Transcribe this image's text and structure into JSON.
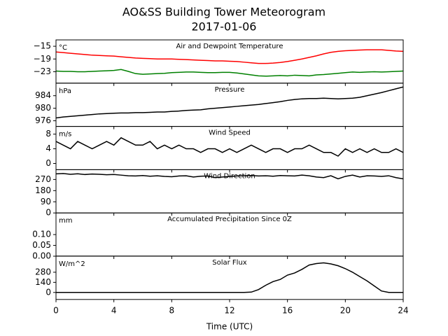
{
  "title": "AO&SS Building Tower Meteorogram",
  "subtitle": "2017-01-06",
  "chart_data": [
    {
      "type": "line",
      "title": "Air and Dewpoint Temperature",
      "unit": "°C",
      "x": [
        0,
        0.5,
        1,
        1.5,
        2,
        2.5,
        3,
        3.5,
        4,
        4.5,
        5,
        5.5,
        6,
        6.5,
        7,
        7.5,
        8,
        8.5,
        9,
        9.5,
        10,
        10.5,
        11,
        11.5,
        12,
        12.5,
        13,
        13.5,
        14,
        14.5,
        15,
        15.5,
        16,
        16.5,
        17,
        17.5,
        18,
        18.5,
        19,
        19.5,
        20,
        20.5,
        21,
        21.5,
        22,
        22.5,
        23,
        23.5,
        24
      ],
      "xlim": [
        0,
        24
      ],
      "xticks": [
        0,
        4,
        8,
        12,
        16,
        20,
        24
      ],
      "ylim": [
        -26.6,
        -13
      ],
      "yticks": [
        {
          "value": -15,
          "label": "−15"
        },
        {
          "value": -19,
          "label": "−19"
        },
        {
          "value": -23,
          "label": "−23"
        }
      ],
      "series": [
        {
          "color": "#ff0000",
          "values": [
            -16.8,
            -17,
            -17.2,
            -17.4,
            -17.6,
            -17.8,
            -17.9,
            -18,
            -18.1,
            -18.3,
            -18.5,
            -18.7,
            -18.8,
            -18.9,
            -19,
            -19,
            -19,
            -19.1,
            -19.2,
            -19.3,
            -19.4,
            -19.5,
            -19.6,
            -19.6,
            -19.7,
            -19.8,
            -20,
            -20.2,
            -20.4,
            -20.4,
            -20.3,
            -20.1,
            -19.8,
            -19.4,
            -19,
            -18.5,
            -18,
            -17.4,
            -16.9,
            -16.6,
            -16.4,
            -16.3,
            -16.2,
            -16.1,
            -16.1,
            -16.1,
            -16.3,
            -16.5,
            -16.6
          ]
        },
        {
          "color": "#008000",
          "values": [
            -22.8,
            -22.9,
            -22.9,
            -23,
            -23,
            -22.9,
            -22.8,
            -22.7,
            -22.6,
            -22.3,
            -22.9,
            -23.6,
            -23.8,
            -23.7,
            -23.6,
            -23.5,
            -23.3,
            -23.2,
            -23.1,
            -23.1,
            -23.2,
            -23.3,
            -23.3,
            -23.2,
            -23.2,
            -23.4,
            -23.7,
            -24,
            -24.3,
            -24.4,
            -24.3,
            -24.2,
            -24.3,
            -24.1,
            -24.2,
            -24.3,
            -24,
            -23.9,
            -23.7,
            -23.5,
            -23.3,
            -23.1,
            -23.2,
            -23.1,
            -23,
            -23.1,
            -23,
            -22.9,
            -22.8
          ]
        }
      ]
    },
    {
      "type": "line",
      "title": "Pressure",
      "unit": "hPa",
      "x": [
        0,
        0.5,
        1,
        1.5,
        2,
        2.5,
        3,
        3.5,
        4,
        4.5,
        5,
        5.5,
        6,
        6.5,
        7,
        7.5,
        8,
        8.5,
        9,
        9.5,
        10,
        10.5,
        11,
        11.5,
        12,
        12.5,
        13,
        13.5,
        14,
        14.5,
        15,
        15.5,
        16,
        16.5,
        17,
        17.5,
        18,
        18.5,
        19,
        19.5,
        20,
        20.5,
        21,
        21.5,
        22,
        22.5,
        23,
        23.5,
        24
      ],
      "xlim": [
        0,
        24
      ],
      "xticks": [
        0,
        4,
        8,
        12,
        16,
        20,
        24
      ],
      "ylim": [
        974.2,
        988
      ],
      "yticks": [
        984,
        980,
        976
      ],
      "series": [
        {
          "color": "#000000",
          "values": [
            976.9,
            977.2,
            977.4,
            977.6,
            977.8,
            978,
            978.2,
            978.3,
            978.4,
            978.5,
            978.5,
            978.6,
            978.6,
            978.7,
            978.8,
            978.8,
            979,
            979.1,
            979.3,
            979.4,
            979.5,
            979.8,
            980,
            980.2,
            980.4,
            980.6,
            980.8,
            981,
            981.2,
            981.5,
            981.8,
            982.1,
            982.5,
            982.8,
            983,
            983.1,
            983.1,
            983.2,
            983.1,
            983,
            983.1,
            983.2,
            983.5,
            984,
            984.5,
            985,
            985.6,
            986.2,
            986.8
          ]
        }
      ]
    },
    {
      "type": "line",
      "title": "Wind Speed",
      "unit": "m/s",
      "x": [
        0,
        0.5,
        1,
        1.5,
        2,
        2.5,
        3,
        3.5,
        4,
        4.5,
        5,
        5.5,
        6,
        6.5,
        7,
        7.5,
        8,
        8.5,
        9,
        9.5,
        10,
        10.5,
        11,
        11.5,
        12,
        12.5,
        13,
        13.5,
        14,
        14.5,
        15,
        15.5,
        16,
        16.5,
        17,
        17.5,
        18,
        18.5,
        19,
        19.5,
        20,
        20.5,
        21,
        21.5,
        22,
        22.5,
        23,
        23.5,
        24
      ],
      "xlim": [
        0,
        24
      ],
      "xticks": [
        0,
        4,
        8,
        12,
        16,
        20,
        24
      ],
      "ylim": [
        -1.7,
        10.1
      ],
      "yticks": [
        8,
        4,
        0
      ],
      "series": [
        {
          "color": "#000000",
          "values": [
            6,
            5,
            4,
            6,
            5,
            4,
            5,
            6,
            5,
            7,
            6,
            5,
            5,
            6,
            4,
            5,
            4,
            5,
            4,
            4,
            3,
            4,
            4,
            3,
            4,
            3,
            4,
            5,
            4,
            3,
            4,
            4,
            3,
            4,
            4,
            5,
            4,
            3,
            3,
            2,
            4,
            3,
            4,
            3,
            4,
            3,
            3,
            4,
            3
          ]
        }
      ]
    },
    {
      "type": "line",
      "title": "Wind Direction",
      "unit": null,
      "x": [
        0,
        0.5,
        1,
        1.5,
        2,
        2.5,
        3,
        3.5,
        4,
        4.5,
        5,
        5.5,
        6,
        6.5,
        7,
        7.5,
        8,
        8.5,
        9,
        9.5,
        10,
        10.5,
        11,
        11.5,
        12,
        12.5,
        13,
        13.5,
        14,
        14.5,
        15,
        15.5,
        16,
        16.5,
        17,
        17.5,
        18,
        18.5,
        19,
        19.5,
        20,
        20.5,
        21,
        21.5,
        22,
        22.5,
        23,
        23.5,
        24
      ],
      "xlim": [
        0,
        24
      ],
      "xticks": [
        0,
        4,
        8,
        12,
        16,
        20,
        24
      ],
      "ylim": [
        0,
        349
      ],
      "yticks": [
        270,
        180,
        90,
        0
      ],
      "series": [
        {
          "color": "#000000",
          "values": [
            315,
            318,
            312,
            316,
            310,
            314,
            312,
            308,
            310,
            305,
            300,
            298,
            302,
            296,
            300,
            295,
            292,
            298,
            300,
            290,
            296,
            298,
            285,
            290,
            294,
            298,
            300,
            302,
            298,
            300,
            296,
            302,
            300,
            298,
            305,
            300,
            290,
            285,
            300,
            275,
            295,
            305,
            290,
            300,
            298,
            295,
            300,
            285,
            275
          ]
        }
      ]
    },
    {
      "type": "line",
      "title": "Accumulated Precipitation Since 0Z",
      "unit": "mm",
      "x": [
        0,
        0.5,
        1,
        1.5,
        2,
        2.5,
        3,
        3.5,
        4,
        4.5,
        5,
        5.5,
        6,
        6.5,
        7,
        7.5,
        8,
        8.5,
        9,
        9.5,
        10,
        10.5,
        11,
        11.5,
        12,
        12.5,
        13,
        13.5,
        14,
        14.5,
        15,
        15.5,
        16,
        16.5,
        17,
        17.5,
        18,
        18.5,
        19,
        19.5,
        20,
        20.5,
        21,
        21.5,
        22,
        22.5,
        23,
        23.5,
        24
      ],
      "xlim": [
        0,
        24
      ],
      "xticks": [
        0,
        4,
        8,
        12,
        16,
        20,
        24
      ],
      "ylim": [
        0,
        0.2
      ],
      "yticks": [
        {
          "value": 0.1,
          "label": "0.10"
        },
        {
          "value": 0.05,
          "label": "0.05"
        },
        {
          "value": 0,
          "label": "0.00"
        }
      ],
      "series": [
        {
          "color": "#000000",
          "values": [
            0,
            0,
            0,
            0,
            0,
            0,
            0,
            0,
            0,
            0,
            0,
            0,
            0,
            0,
            0,
            0,
            0,
            0,
            0,
            0,
            0,
            0,
            0,
            0,
            0,
            0,
            0,
            0,
            0,
            0,
            0,
            0,
            0,
            0,
            0,
            0,
            0,
            0,
            0,
            0,
            0,
            0,
            0,
            0,
            0,
            0,
            0,
            0,
            0
          ]
        }
      ]
    },
    {
      "type": "line",
      "title": "Solar Flux",
      "unit": "W/m^2",
      "xlabel": "Time (UTC)",
      "x": [
        0,
        0.5,
        1,
        1.5,
        2,
        2.5,
        3,
        3.5,
        4,
        4.5,
        5,
        5.5,
        6,
        6.5,
        7,
        7.5,
        8,
        8.5,
        9,
        9.5,
        10,
        10.5,
        11,
        11.5,
        12,
        12.5,
        13,
        13.5,
        14,
        14.5,
        15,
        15.5,
        16,
        16.5,
        17,
        17.5,
        18,
        18.5,
        19,
        19.5,
        20,
        20.5,
        21,
        21.5,
        22,
        22.5,
        23,
        23.5,
        24
      ],
      "xlim": [
        0,
        24
      ],
      "xticks": [
        0,
        4,
        8,
        12,
        16,
        20,
        24
      ],
      "ylim": [
        -97,
        502
      ],
      "yticks": [
        280,
        140,
        0
      ],
      "series": [
        {
          "color": "#000000",
          "values": [
            0,
            0,
            0,
            0,
            0,
            0,
            0,
            0,
            0,
            0,
            0,
            0,
            0,
            0,
            0,
            0,
            0,
            0,
            0,
            0,
            0,
            0,
            0,
            0,
            0,
            0,
            0,
            5,
            40,
            100,
            150,
            180,
            240,
            270,
            320,
            380,
            400,
            410,
            395,
            370,
            330,
            280,
            220,
            160,
            90,
            20,
            0,
            0,
            0
          ]
        }
      ]
    }
  ]
}
